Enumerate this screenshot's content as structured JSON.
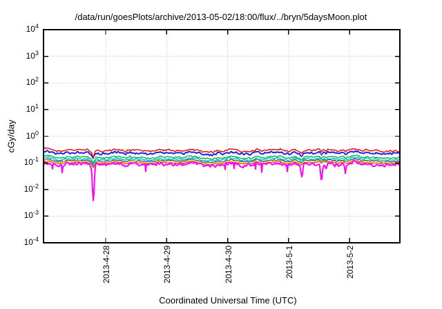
{
  "title": "/data/run/goesPlots/archive/2013-05-02/18:00/flux/../bryn/5daysMoon.plot",
  "y_axis": {
    "label": "cGy/day",
    "scale": "log",
    "base": "10",
    "exponents": [
      4,
      3,
      2,
      1,
      0,
      -1,
      -2,
      -3,
      -4
    ],
    "min": 0.0001,
    "max": 10000
  },
  "x_axis": {
    "label": "Coordinated Universal Time (UTC)",
    "ticks": [
      "2013-4-28",
      "2013-4-29",
      "2013-4-30",
      "2013-5-1",
      "2013-5-2"
    ]
  },
  "chart_data": {
    "type": "line",
    "title": "/data/run/goesPlots/archive/2013-05-02/18:00/flux/../bryn/5daysMoon.plot",
    "xlabel": "Coordinated Universal Time (UTC)",
    "ylabel": "cGy/day",
    "x_tick_labels": [
      "2013-4-28",
      "2013-4-29",
      "2013-4-30",
      "2013-5-1",
      "2013-5-2"
    ],
    "x_span_days": 5,
    "ylim": [
      0.0001,
      10000
    ],
    "grid": true,
    "legend_position": "none",
    "series": [
      {
        "name": "red",
        "color": "#ee0000",
        "approx_level": 0.3,
        "range": [
          0.22,
          0.4
        ],
        "noise_decades": 0.05,
        "stroke_width": 1.4
      },
      {
        "name": "blue",
        "color": "#2323e6",
        "approx_level": 0.24,
        "range": [
          0.17,
          0.32
        ],
        "noise_decades": 0.055,
        "stroke_width": 2.0
      },
      {
        "name": "white",
        "color": "#f4f4f4",
        "approx_level": 0.195,
        "range": [
          0.15,
          0.25
        ],
        "noise_decades": 0.038,
        "stroke_width": 1.6
      },
      {
        "name": "green",
        "color": "#00b342",
        "approx_level": 0.165,
        "range": [
          0.13,
          0.21
        ],
        "noise_decades": 0.035,
        "stroke_width": 1.4
      },
      {
        "name": "cyan",
        "color": "#00c8c8",
        "approx_level": 0.14,
        "range": [
          0.11,
          0.18
        ],
        "noise_decades": 0.035,
        "stroke_width": 1.5
      },
      {
        "name": "navy",
        "color": "#3232a0",
        "approx_level": 0.122,
        "range": [
          0.1,
          0.15
        ],
        "noise_decades": 0.028,
        "stroke_width": 1.2
      },
      {
        "name": "yellow",
        "color": "#dcdc00",
        "approx_level": 0.112,
        "range": [
          0.09,
          0.14
        ],
        "noise_decades": 0.025,
        "stroke_width": 1.2
      },
      {
        "name": "orange-red",
        "color": "#f04028",
        "approx_level": 0.102,
        "range": [
          0.085,
          0.13
        ],
        "noise_decades": 0.025,
        "stroke_width": 1.2
      },
      {
        "name": "magenta",
        "color": "#ff00ff",
        "approx_level": 0.09,
        "range": [
          0.06,
          0.13
        ],
        "noise_decades": 0.09,
        "stroke_width": 2.0
      }
    ],
    "anomalies": [
      {
        "series": "magenta",
        "time_approx": "2013-4-27 ~19:00",
        "x_frac": 0.14,
        "min_value": 0.004
      },
      {
        "series": "magenta",
        "time_approx": "2013-5-1 ~05:00",
        "x_frac": 0.725,
        "min_value": 0.03
      },
      {
        "series": "magenta",
        "time_approx": "2013-5-1 ~12:45",
        "x_frac": 0.78,
        "min_value": 0.02
      },
      {
        "series": "magenta",
        "time_approx": "2013-5-1 ~14:40",
        "x_frac": 0.793,
        "min_value": 0.05
      },
      {
        "series": "magenta",
        "time_approx": "2013-5-2 ~00:00",
        "x_frac": 0.847,
        "min_value": 0.06
      }
    ]
  }
}
